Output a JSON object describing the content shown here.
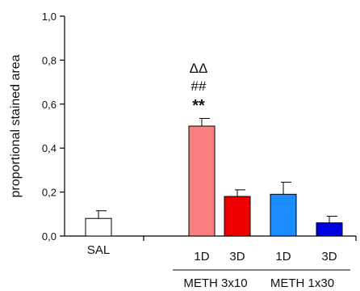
{
  "chart_data": {
    "type": "bar",
    "title": "",
    "xlabel": "",
    "ylabel": "proportional stained area",
    "ylim": [
      0,
      1.0
    ],
    "yticks": [
      "0,0",
      "0,2",
      "0,4",
      "0,6",
      "0,8",
      "1,0"
    ],
    "grid": false,
    "categories": [
      "SAL",
      "1D",
      "3D",
      "1D",
      "3D"
    ],
    "values": [
      0.08,
      0.5,
      0.18,
      0.19,
      0.06
    ],
    "errors": [
      0.035,
      0.035,
      0.03,
      0.055,
      0.03
    ],
    "colors": [
      "#ffffff",
      "#f98080",
      "#ee0000",
      "#1a8cff",
      "#0000dd"
    ],
    "groups": [
      {
        "label": "METH 3x10",
        "members": [
          1,
          2
        ]
      },
      {
        "label": "METH 1x30",
        "members": [
          3,
          4
        ]
      }
    ],
    "annotations": [
      {
        "category_index": 1,
        "lines": [
          "ΔΔ",
          "##",
          "**"
        ]
      }
    ]
  }
}
